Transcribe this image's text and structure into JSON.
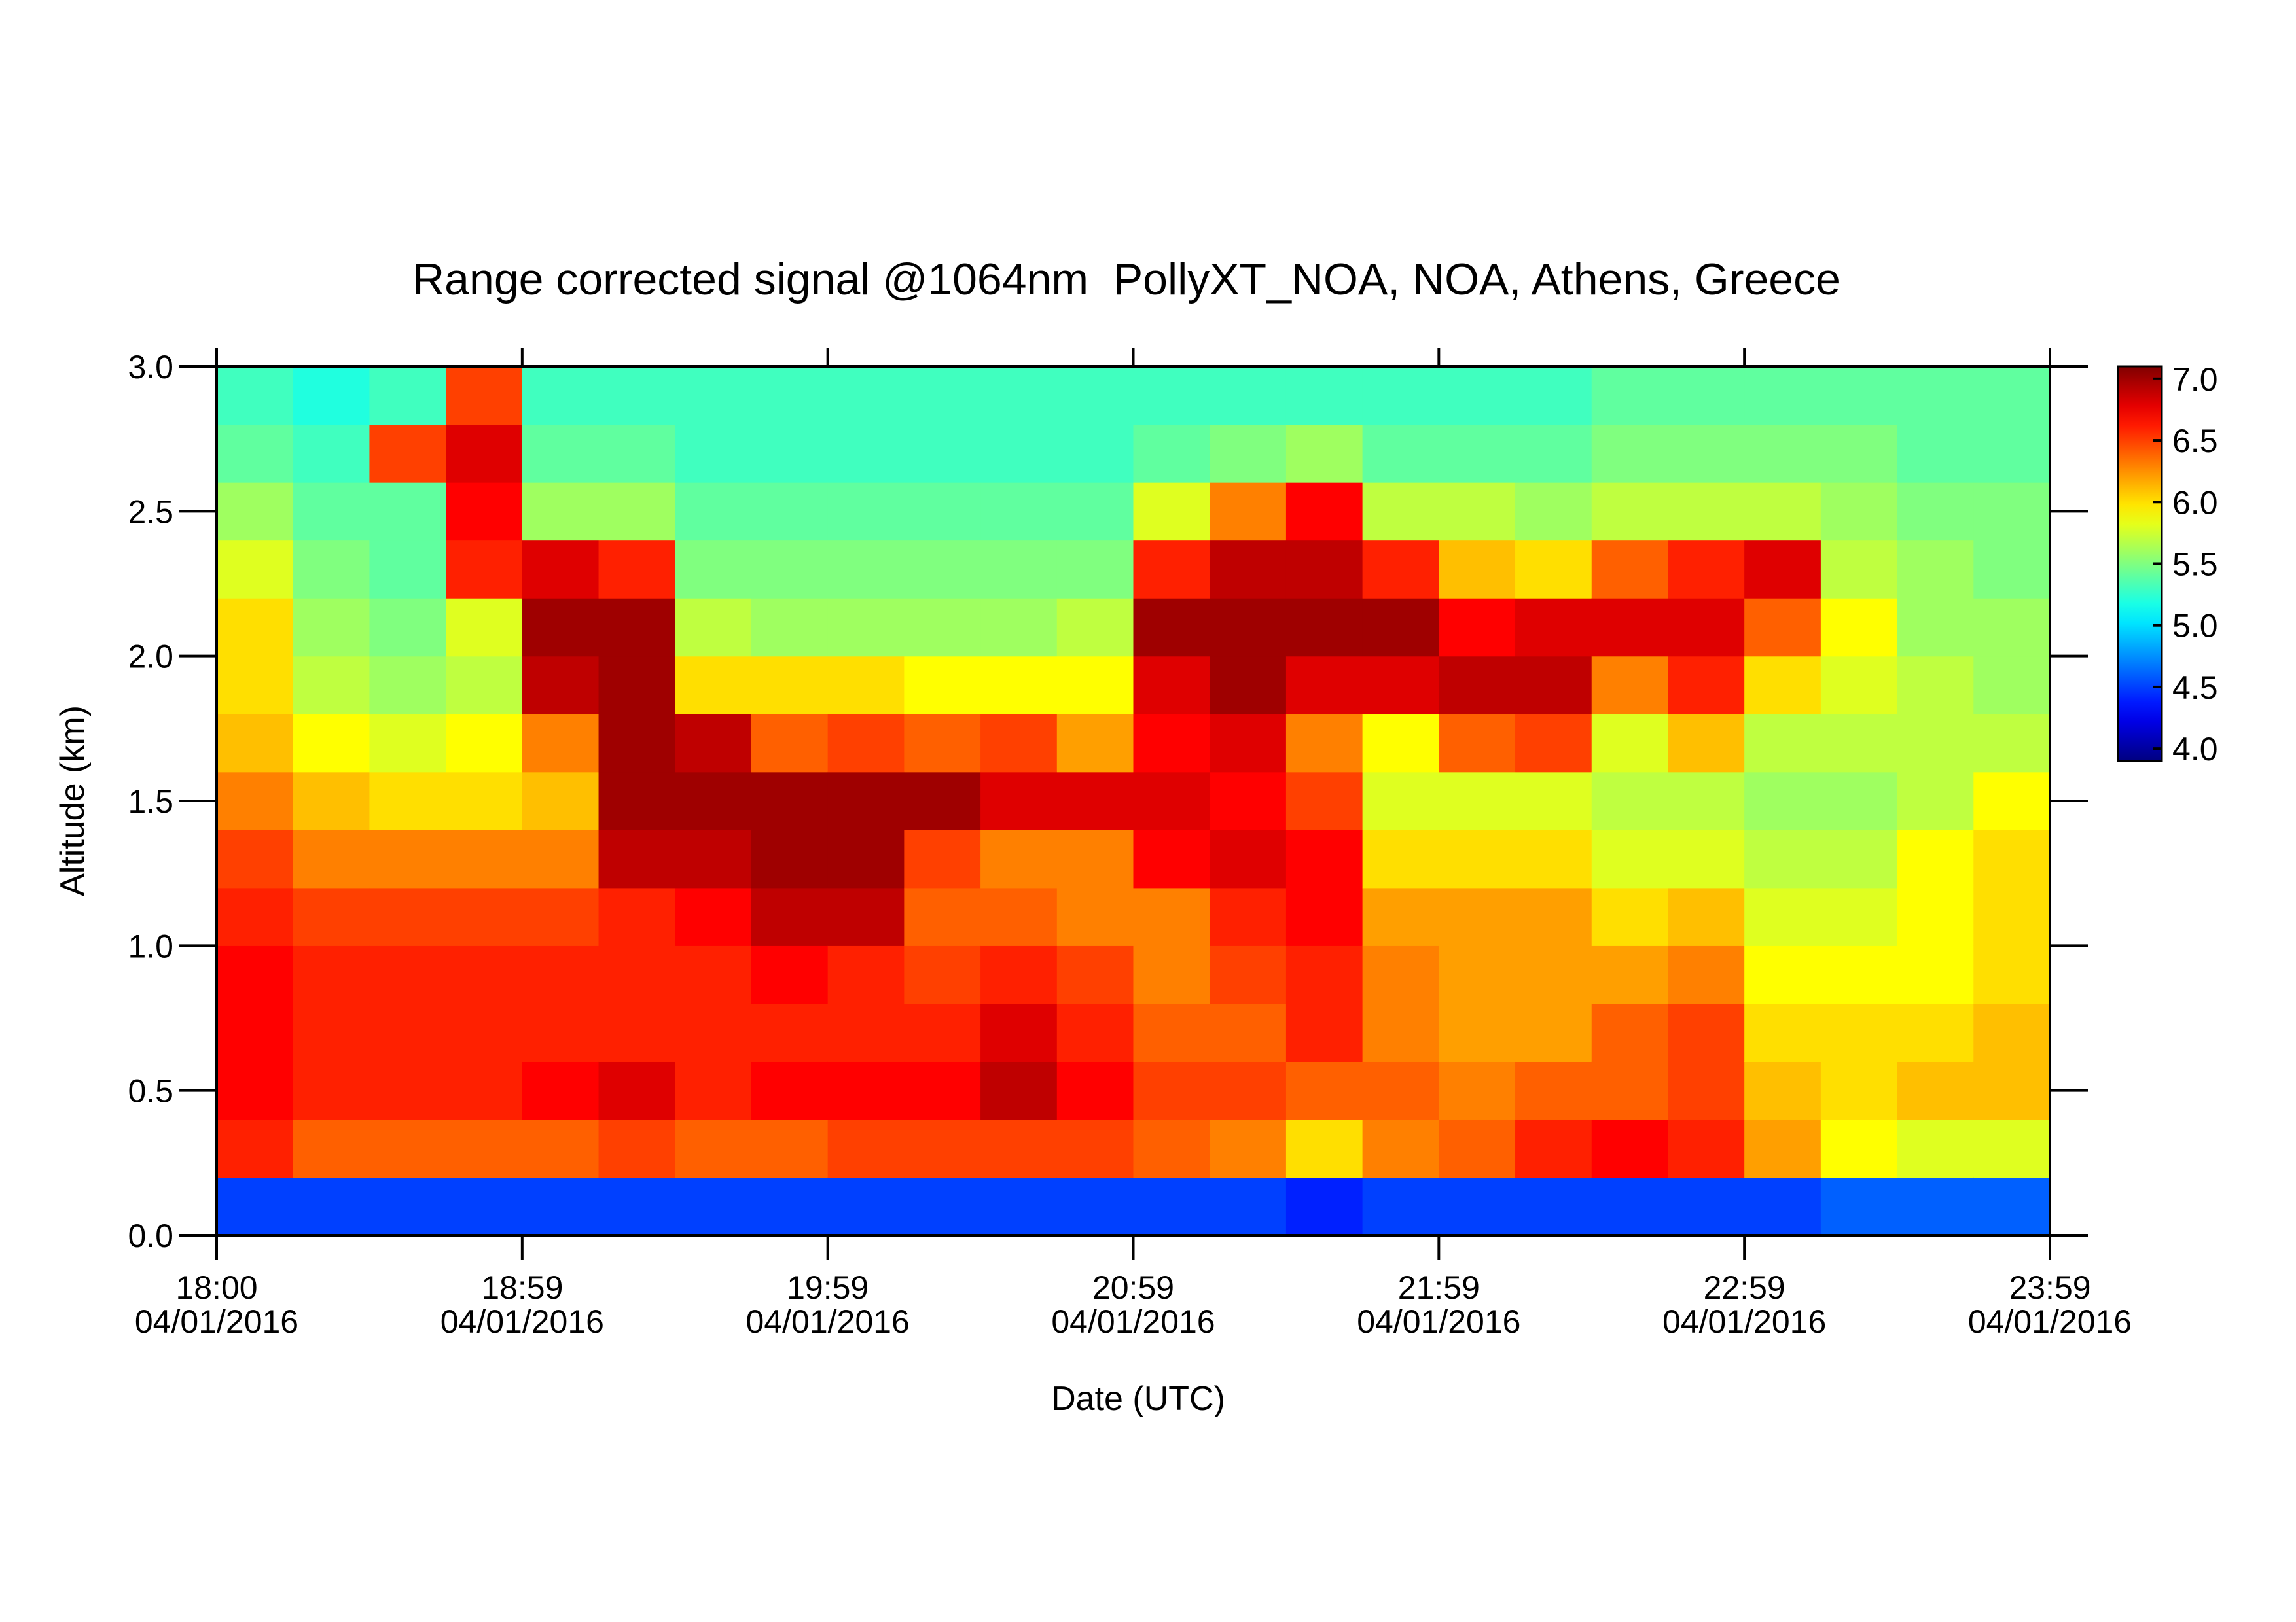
{
  "chart_data": {
    "type": "heatmap",
    "title": "Range corrected signal @1064nm  PollyXT_NOA, NOA, Athens, Greece",
    "xlabel": "Date (UTC)",
    "ylabel": "Altitude (km)",
    "xlim": [
      0,
      360
    ],
    "ylim": [
      0,
      3.0
    ],
    "xticks": [
      {
        "value": 0,
        "label": "18:00\n04/01/2016"
      },
      {
        "value": 60,
        "label": "18:59\n04/01/2016"
      },
      {
        "value": 120,
        "label": "19:59\n04/01/2016"
      },
      {
        "value": 180,
        "label": "20:59\n04/01/2016"
      },
      {
        "value": 240,
        "label": "21:59\n04/01/2016"
      },
      {
        "value": 300,
        "label": "22:59\n04/01/2016"
      },
      {
        "value": 360,
        "label": "23:59\n04/01/2016"
      }
    ],
    "yticks": [
      {
        "value": 0,
        "label": "0.0"
      },
      {
        "value": 0.5,
        "label": "0.5"
      },
      {
        "value": 1,
        "label": "1.0"
      },
      {
        "value": 1.5,
        "label": "1.5"
      },
      {
        "value": 2,
        "label": "2.0"
      },
      {
        "value": 2.5,
        "label": "2.5"
      },
      {
        "value": 3,
        "label": "3.0"
      }
    ],
    "zlim": [
      3.9,
      7.1
    ],
    "zticks": [
      {
        "value": 4,
        "label": "4.0"
      },
      {
        "value": 4.5,
        "label": "4.5"
      },
      {
        "value": 5,
        "label": "5.0"
      },
      {
        "value": 5.5,
        "label": "5.5"
      },
      {
        "value": 6,
        "label": "6.0"
      },
      {
        "value": 6.5,
        "label": "6.5"
      },
      {
        "value": 7,
        "label": "7.0"
      }
    ],
    "colormap": "jet",
    "xbins": [
      0,
      15,
      30,
      45,
      60,
      75,
      90,
      105,
      120,
      135,
      150,
      165,
      180,
      195,
      210,
      225,
      240,
      255,
      270,
      285,
      300,
      315,
      330,
      345,
      360
    ],
    "ybins": [
      0,
      0.2,
      0.4,
      0.6,
      0.8,
      1.0,
      1.2,
      1.4,
      1.6,
      1.8,
      2.0,
      2.2,
      2.4,
      2.6,
      2.8,
      3.0
    ],
    "z": [
      [
        4.5,
        6.6,
        6.7,
        6.7,
        6.7,
        6.6,
        6.5,
        6.3,
        6.1,
        6.0,
        6.0,
        5.8,
        5.6,
        5.4,
        5.3
      ],
      [
        4.5,
        6.4,
        6.6,
        6.6,
        6.6,
        6.5,
        6.3,
        6.1,
        5.9,
        5.7,
        5.6,
        5.5,
        5.4,
        5.3,
        5.2
      ],
      [
        4.5,
        6.4,
        6.6,
        6.6,
        6.6,
        6.5,
        6.3,
        6.0,
        5.8,
        5.6,
        5.5,
        5.4,
        5.4,
        6.5,
        5.3
      ],
      [
        4.5,
        6.4,
        6.6,
        6.6,
        6.6,
        6.5,
        6.3,
        6.0,
        5.9,
        5.7,
        5.8,
        6.6,
        6.7,
        6.8,
        6.5
      ],
      [
        4.5,
        6.4,
        6.7,
        6.6,
        6.6,
        6.5,
        6.3,
        6.1,
        6.3,
        6.9,
        7.0,
        6.8,
        5.6,
        5.4,
        5.3
      ],
      [
        4.5,
        6.5,
        6.8,
        6.6,
        6.6,
        6.6,
        6.9,
        7.0,
        7.0,
        7.0,
        7.0,
        6.6,
        5.6,
        5.4,
        5.3
      ],
      [
        4.5,
        6.4,
        6.6,
        6.6,
        6.6,
        6.7,
        6.9,
        7.0,
        6.9,
        6.0,
        5.7,
        5.5,
        5.4,
        5.3,
        5.3
      ],
      [
        4.5,
        6.4,
        6.7,
        6.6,
        6.7,
        6.9,
        7.0,
        7.0,
        6.4,
        6.0,
        5.6,
        5.5,
        5.4,
        5.3,
        5.3
      ],
      [
        4.5,
        6.5,
        6.7,
        6.6,
        6.6,
        6.9,
        7.0,
        7.0,
        6.5,
        6.0,
        5.6,
        5.5,
        5.4,
        5.3,
        5.3
      ],
      [
        4.5,
        6.5,
        6.7,
        6.6,
        6.5,
        6.4,
        6.5,
        7.0,
        6.4,
        5.9,
        5.6,
        5.5,
        5.4,
        5.3,
        5.3
      ],
      [
        4.5,
        6.5,
        6.9,
        6.8,
        6.6,
        6.4,
        6.3,
        6.8,
        6.5,
        5.9,
        5.6,
        5.5,
        5.4,
        5.3,
        5.3
      ],
      [
        4.5,
        6.5,
        6.7,
        6.6,
        6.5,
        6.3,
        6.3,
        6.8,
        6.2,
        5.9,
        5.7,
        5.5,
        5.4,
        5.3,
        5.3
      ],
      [
        4.5,
        6.4,
        6.5,
        6.4,
        6.3,
        6.3,
        6.7,
        6.8,
        6.7,
        6.8,
        7.0,
        6.6,
        5.8,
        5.4,
        5.3
      ],
      [
        4.5,
        6.3,
        6.5,
        6.4,
        6.5,
        6.6,
        6.8,
        6.7,
        6.8,
        7.0,
        7.0,
        6.9,
        6.3,
        5.5,
        5.3
      ],
      [
        4.4,
        6.0,
        6.4,
        6.6,
        6.6,
        6.7,
        6.7,
        6.5,
        6.3,
        6.8,
        7.0,
        6.9,
        6.7,
        5.6,
        5.3
      ],
      [
        4.5,
        6.3,
        6.4,
        6.3,
        6.3,
        6.2,
        6.0,
        5.8,
        5.9,
        6.8,
        7.0,
        6.6,
        5.7,
        5.4,
        5.3
      ],
      [
        4.5,
        6.4,
        6.3,
        6.2,
        6.2,
        6.2,
        6.0,
        5.8,
        6.4,
        6.9,
        6.7,
        6.1,
        5.7,
        5.4,
        5.3
      ],
      [
        4.5,
        6.6,
        6.4,
        6.2,
        6.2,
        6.2,
        6.0,
        5.8,
        6.5,
        6.9,
        6.8,
        6.0,
        5.6,
        5.4,
        5.3
      ],
      [
        4.5,
        6.7,
        6.4,
        6.4,
        6.2,
        6.0,
        5.8,
        5.7,
        5.8,
        6.3,
        6.8,
        6.4,
        5.7,
        5.5,
        5.4
      ],
      [
        4.5,
        6.6,
        6.5,
        6.5,
        6.3,
        6.1,
        5.8,
        5.7,
        6.1,
        6.6,
        6.8,
        6.6,
        5.7,
        5.5,
        5.4
      ],
      [
        4.5,
        6.2,
        6.1,
        6.0,
        5.9,
        5.8,
        5.7,
        5.6,
        5.7,
        6.0,
        6.4,
        6.8,
        5.7,
        5.5,
        5.4
      ],
      [
        4.6,
        5.9,
        6.0,
        6.0,
        5.9,
        5.8,
        5.7,
        5.6,
        5.7,
        5.8,
        5.9,
        5.7,
        5.6,
        5.5,
        5.4
      ],
      [
        4.6,
        5.8,
        6.1,
        6.0,
        5.9,
        5.9,
        5.9,
        5.7,
        5.7,
        5.7,
        5.6,
        5.6,
        5.5,
        5.4,
        5.4
      ],
      [
        4.6,
        5.8,
        6.1,
        6.1,
        6.0,
        6.0,
        6.0,
        5.9,
        5.7,
        5.6,
        5.6,
        5.5,
        5.5,
        5.4,
        5.4
      ]
    ]
  }
}
